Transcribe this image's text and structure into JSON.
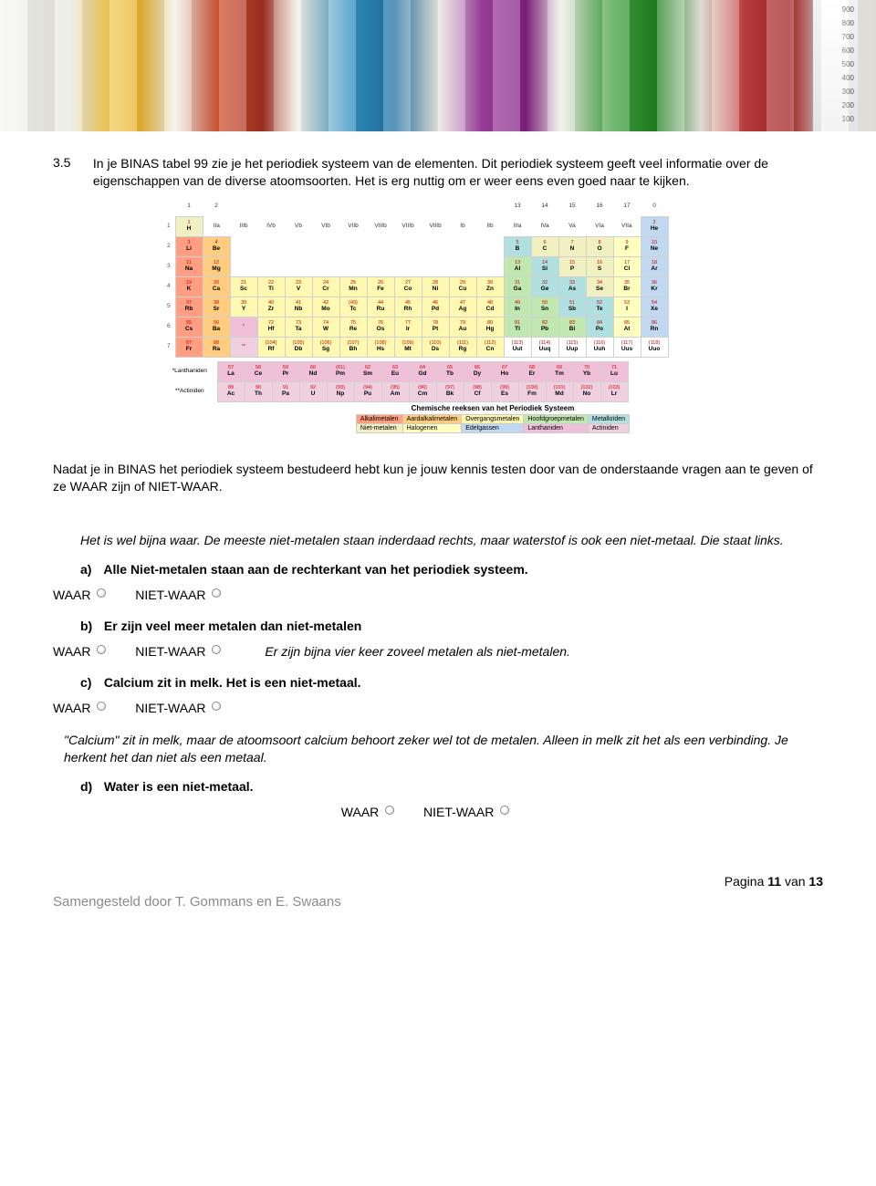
{
  "hero": {
    "ruler_marks": [
      "900",
      "800",
      "700",
      "600",
      "500",
      "400",
      "300",
      "200",
      "100"
    ]
  },
  "question": {
    "number": "3.5",
    "intro": "In je BINAS tabel 99 zie je het periodiek systeem van de elementen. Dit periodiek systeem geeft veel informatie over de eigenschappen van de diverse atoomsoorten. Het is erg nuttig om er weer eens even goed naar te kijken."
  },
  "periodic": {
    "caption": "Chemische reeksen van het Periodiek Systeem",
    "legend": [
      [
        "Alkalimetalen",
        "c-alk"
      ],
      [
        "Aardalkalimetalen",
        "c-aea"
      ],
      [
        "Overgangsmetalen",
        "c-tm"
      ],
      [
        "Hoofdgroepmetalen",
        "c-pm"
      ],
      [
        "Metalloïden",
        "c-ml"
      ],
      [
        "Niet-metalen",
        "c-nm"
      ],
      [
        "Halogenen",
        "c-hal"
      ],
      [
        "Edelgassen",
        "c-ng"
      ],
      [
        "Lanthaniden",
        "c-lan"
      ],
      [
        "Actiniden",
        "c-act"
      ]
    ],
    "group_labels_top": [
      "1",
      "2",
      "",
      "",
      "",
      "",
      "",
      "",
      "",
      "",
      "",
      "",
      "13",
      "14",
      "15",
      "16",
      "17",
      "0"
    ],
    "group_labels_sub": [
      "",
      "IIa",
      "IIIb",
      "IVb",
      "Vb",
      "VIb",
      "VIIb",
      "VIIIb",
      "VIIIb",
      "VIIIb",
      "Ib",
      "IIb",
      "IIIa",
      "IVa",
      "Va",
      "VIa",
      "VIIa",
      ""
    ],
    "rows": [
      [
        [
          "1",
          "H",
          "c-nm"
        ],
        null,
        null,
        null,
        null,
        null,
        null,
        null,
        null,
        null,
        null,
        null,
        null,
        null,
        null,
        null,
        null,
        [
          "2",
          "He",
          "c-ng"
        ]
      ],
      [
        [
          "3",
          "Li",
          "c-alk"
        ],
        [
          "4",
          "Be",
          "c-aea"
        ],
        null,
        null,
        null,
        null,
        null,
        null,
        null,
        null,
        null,
        null,
        [
          "5",
          "B",
          "c-ml"
        ],
        [
          "6",
          "C",
          "c-nm"
        ],
        [
          "7",
          "N",
          "c-nm"
        ],
        [
          "8",
          "O",
          "c-nm"
        ],
        [
          "9",
          "F",
          "c-hal"
        ],
        [
          "10",
          "Ne",
          "c-ng"
        ]
      ],
      [
        [
          "11",
          "Na",
          "c-alk"
        ],
        [
          "12",
          "Mg",
          "c-aea"
        ],
        null,
        null,
        null,
        null,
        null,
        null,
        null,
        null,
        null,
        null,
        [
          "13",
          "Al",
          "c-pm"
        ],
        [
          "14",
          "Si",
          "c-ml"
        ],
        [
          "15",
          "P",
          "c-nm"
        ],
        [
          "16",
          "S",
          "c-nm"
        ],
        [
          "17",
          "Cl",
          "c-hal"
        ],
        [
          "18",
          "Ar",
          "c-ng"
        ]
      ],
      [
        [
          "19",
          "K",
          "c-alk"
        ],
        [
          "20",
          "Ca",
          "c-aea"
        ],
        [
          "21",
          "Sc",
          "c-tm"
        ],
        [
          "22",
          "Ti",
          "c-tm"
        ],
        [
          "23",
          "V",
          "c-tm"
        ],
        [
          "24",
          "Cr",
          "c-tm"
        ],
        [
          "25",
          "Mn",
          "c-tm"
        ],
        [
          "26",
          "Fe",
          "c-tm"
        ],
        [
          "27",
          "Co",
          "c-tm"
        ],
        [
          "28",
          "Ni",
          "c-tm"
        ],
        [
          "29",
          "Cu",
          "c-tm"
        ],
        [
          "30",
          "Zn",
          "c-tm"
        ],
        [
          "31",
          "Ga",
          "c-pm"
        ],
        [
          "32",
          "Ge",
          "c-ml"
        ],
        [
          "33",
          "As",
          "c-ml"
        ],
        [
          "34",
          "Se",
          "c-nm"
        ],
        [
          "35",
          "Br",
          "c-hal"
        ],
        [
          "36",
          "Kr",
          "c-ng"
        ]
      ],
      [
        [
          "37",
          "Rb",
          "c-alk"
        ],
        [
          "38",
          "Sr",
          "c-aea"
        ],
        [
          "39",
          "Y",
          "c-tm"
        ],
        [
          "40",
          "Zr",
          "c-tm"
        ],
        [
          "41",
          "Nb",
          "c-tm"
        ],
        [
          "42",
          "Mo",
          "c-tm"
        ],
        [
          "(43)",
          "Tc",
          "c-tm"
        ],
        [
          "44",
          "Ru",
          "c-tm"
        ],
        [
          "45",
          "Rh",
          "c-tm"
        ],
        [
          "46",
          "Pd",
          "c-tm"
        ],
        [
          "47",
          "Ag",
          "c-tm"
        ],
        [
          "48",
          "Cd",
          "c-tm"
        ],
        [
          "49",
          "In",
          "c-pm"
        ],
        [
          "50",
          "Sn",
          "c-pm"
        ],
        [
          "51",
          "Sb",
          "c-ml"
        ],
        [
          "52",
          "Te",
          "c-ml"
        ],
        [
          "53",
          "I",
          "c-hal"
        ],
        [
          "54",
          "Xe",
          "c-ng"
        ]
      ],
      [
        [
          "55",
          "Cs",
          "c-alk"
        ],
        [
          "56",
          "Ba",
          "c-aea"
        ],
        [
          "*",
          "",
          "c-lan"
        ],
        [
          "72",
          "Hf",
          "c-tm"
        ],
        [
          "73",
          "Ta",
          "c-tm"
        ],
        [
          "74",
          "W",
          "c-tm"
        ],
        [
          "75",
          "Re",
          "c-tm"
        ],
        [
          "76",
          "Os",
          "c-tm"
        ],
        [
          "77",
          "Ir",
          "c-tm"
        ],
        [
          "78",
          "Pt",
          "c-tm"
        ],
        [
          "79",
          "Au",
          "c-tm"
        ],
        [
          "80",
          "Hg",
          "c-tm"
        ],
        [
          "81",
          "Tl",
          "c-pm"
        ],
        [
          "82",
          "Pb",
          "c-pm"
        ],
        [
          "83",
          "Bi",
          "c-pm"
        ],
        [
          "84",
          "Po",
          "c-ml"
        ],
        [
          "85",
          "At",
          "c-hal"
        ],
        [
          "86",
          "Rn",
          "c-ng"
        ]
      ],
      [
        [
          "87",
          "Fr",
          "c-alk"
        ],
        [
          "88",
          "Ra",
          "c-aea"
        ],
        [
          "**",
          "",
          "c-act"
        ],
        [
          "(104)",
          "Rf",
          "c-tm"
        ],
        [
          "(105)",
          "Db",
          "c-tm"
        ],
        [
          "(106)",
          "Sg",
          "c-tm"
        ],
        [
          "(107)",
          "Bh",
          "c-tm"
        ],
        [
          "(108)",
          "Hs",
          "c-tm"
        ],
        [
          "(109)",
          "Mt",
          "c-tm"
        ],
        [
          "(110)",
          "Ds",
          "c-tm"
        ],
        [
          "(111)",
          "Rg",
          "c-tm"
        ],
        [
          "(112)",
          "Cn",
          "c-tm"
        ],
        [
          "(113)",
          "Uut",
          ""
        ],
        [
          "(114)",
          "Uuq",
          ""
        ],
        [
          "(115)",
          "Uup",
          ""
        ],
        [
          "(116)",
          "Uuh",
          ""
        ],
        [
          "(117)",
          "Uus",
          ""
        ],
        [
          "(118)",
          "Uuo",
          ""
        ]
      ]
    ],
    "lanth_label": "*Lanthaniden",
    "act_label": "**Actiniden",
    "lanth": [
      [
        "57",
        "La"
      ],
      [
        "58",
        "Ce"
      ],
      [
        "59",
        "Pr"
      ],
      [
        "60",
        "Nd"
      ],
      [
        "(61)",
        "Pm"
      ],
      [
        "62",
        "Sm"
      ],
      [
        "63",
        "Eu"
      ],
      [
        "64",
        "Gd"
      ],
      [
        "65",
        "Tb"
      ],
      [
        "66",
        "Dy"
      ],
      [
        "67",
        "Ho"
      ],
      [
        "68",
        "Er"
      ],
      [
        "69",
        "Tm"
      ],
      [
        "70",
        "Yb"
      ],
      [
        "71",
        "Lu"
      ]
    ],
    "act": [
      [
        "89",
        "Ac"
      ],
      [
        "90",
        "Th"
      ],
      [
        "91",
        "Pa"
      ],
      [
        "92",
        "U"
      ],
      [
        "(93)",
        "Np"
      ],
      [
        "(94)",
        "Pu"
      ],
      [
        "(95)",
        "Am"
      ],
      [
        "(96)",
        "Cm"
      ],
      [
        "(97)",
        "Bk"
      ],
      [
        "(98)",
        "Cf"
      ],
      [
        "(99)",
        "Es"
      ],
      [
        "(100)",
        "Fm"
      ],
      [
        "(101)",
        "Md"
      ],
      [
        "(102)",
        "No"
      ],
      [
        "(103)",
        "Lr"
      ]
    ]
  },
  "mid": "Nadat je in BINAS het periodiek systeem bestudeerd hebt kun je jouw kennis testen door van de onderstaande vragen aan te geven of ze WAAR zijn of NIET-WAAR.",
  "note_a": "Het is wel bijna waar. De meeste niet-metalen staan inderdaad rechts, maar waterstof is ook een niet-metaal. Die staat links.",
  "qa": {
    "label": "a)",
    "text": "Alle Niet-metalen staan aan de rechterkant van het periodiek systeem."
  },
  "qb": {
    "label": "b)",
    "text": "Er zijn veel meer metalen dan niet-metalen",
    "note": "Er zijn bijna vier keer zoveel metalen als niet-metalen."
  },
  "qc": {
    "label": "c)",
    "text": "Calcium zit in melk. Het is een niet-metaal."
  },
  "note_c": "\"Calcium\" zit in melk, maar de atoomsoort calcium behoort zeker wel tot de metalen. Alleen in melk zit het als een verbinding. Je herkent het dan niet als een metaal.",
  "qd": {
    "label": "d)",
    "text": "Water is een niet-metaal."
  },
  "opts": {
    "waar": "WAAR",
    "niet": "NIET-WAAR"
  },
  "footer": {
    "page_prefix": "Pagina ",
    "page_cur": "11",
    "page_mid": " van ",
    "page_tot": "13",
    "author": "Samengesteld door T. Gommans en E. Swaans"
  }
}
